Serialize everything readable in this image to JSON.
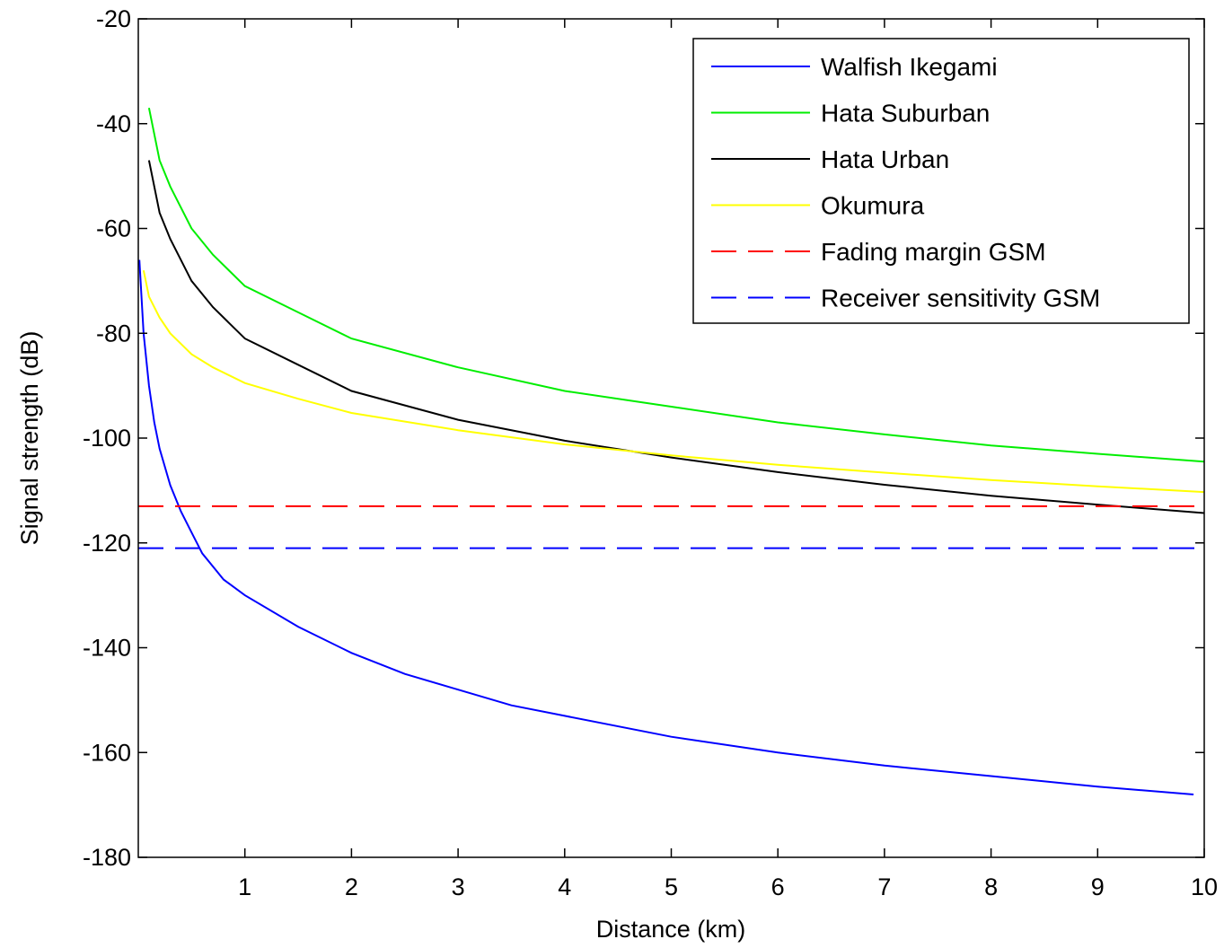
{
  "chart_data": {
    "type": "line",
    "title": "",
    "xlabel": "Distance (km)",
    "ylabel": "Signal strength (dB)",
    "xlim": [
      0,
      10
    ],
    "ylim": [
      -180,
      -20
    ],
    "x_ticks": [
      1,
      2,
      3,
      4,
      5,
      6,
      7,
      8,
      9,
      10
    ],
    "y_ticks": [
      -20,
      -40,
      -60,
      -80,
      -100,
      -120,
      -140,
      -160,
      -180
    ],
    "grid": false,
    "legend_position": "top-right",
    "series": [
      {
        "name": "Walfish Ikegami",
        "color": "#0000ff",
        "dash": "solid",
        "x": [
          0.01,
          0.05,
          0.1,
          0.15,
          0.2,
          0.3,
          0.4,
          0.5,
          0.6,
          0.8,
          1,
          1.5,
          2,
          2.5,
          3,
          3.5,
          4,
          5,
          6,
          7,
          8,
          9,
          9.9
        ],
        "y": [
          -66,
          -80,
          -90,
          -97,
          -102,
          -109,
          -114,
          -118,
          -122,
          -127,
          -130,
          -136,
          -141,
          -145,
          -148,
          -151,
          -153,
          -157,
          -160,
          -162.5,
          -164.5,
          -166.5,
          -168
        ]
      },
      {
        "name": "Hata Suburban",
        "color": "#00ee00",
        "dash": "solid",
        "x": [
          0.1,
          0.2,
          0.3,
          0.5,
          0.7,
          1,
          1.5,
          2,
          3,
          4,
          5,
          6,
          7,
          8,
          9,
          10
        ],
        "y": [
          -37,
          -47,
          -52,
          -60,
          -65,
          -71,
          -76,
          -81,
          -86.5,
          -91,
          -94,
          -97,
          -99.3,
          -101.4,
          -103,
          -104.5
        ]
      },
      {
        "name": "Hata Urban",
        "color": "#000000",
        "dash": "solid",
        "x": [
          0.1,
          0.2,
          0.3,
          0.5,
          0.7,
          1,
          1.5,
          2,
          3,
          4,
          5,
          6,
          7,
          8,
          9,
          10
        ],
        "y": [
          -47,
          -57,
          -62,
          -70,
          -75,
          -81,
          -86,
          -91,
          -96.5,
          -100.5,
          -103.7,
          -106.5,
          -108.9,
          -111,
          -112.7,
          -114.3
        ]
      },
      {
        "name": "Okumura",
        "color": "#ffff00",
        "dash": "solid",
        "x": [
          0.05,
          0.1,
          0.2,
          0.3,
          0.5,
          0.7,
          1,
          1.5,
          2,
          3,
          4,
          5,
          6,
          7,
          8,
          9,
          10
        ],
        "y": [
          -68,
          -73,
          -77,
          -80,
          -84,
          -86.5,
          -89.5,
          -92.5,
          -95.2,
          -98.5,
          -101.2,
          -103.3,
          -105.1,
          -106.6,
          -108,
          -109.2,
          -110.3
        ]
      },
      {
        "name": "Fading margin GSM",
        "color": "#ff0000",
        "dash": "dashed",
        "x": [
          0,
          10
        ],
        "y": [
          -113,
          -113
        ]
      },
      {
        "name": "Receiver sensitivity GSM",
        "color": "#0000ff",
        "dash": "dashed",
        "x": [
          0,
          10
        ],
        "y": [
          -121,
          -121
        ]
      }
    ]
  }
}
